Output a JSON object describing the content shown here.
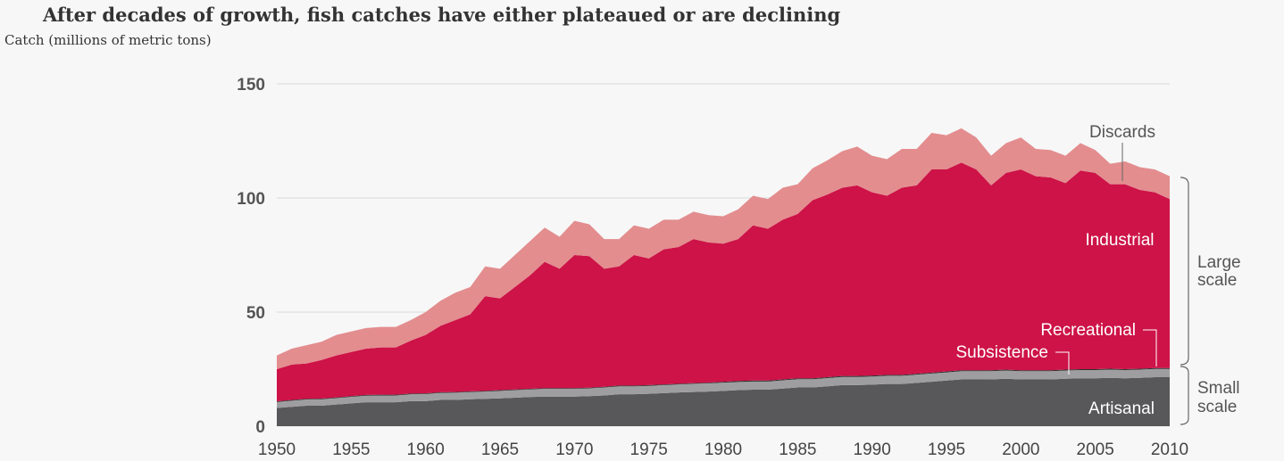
{
  "chart_data": {
    "type": "area",
    "stacked": true,
    "title": "After decades of growth, fish catches have either plateaued or are declining",
    "ylabel": "Catch (millions of metric tons)",
    "xlabel": "",
    "xlim": [
      1950,
      2010
    ],
    "ylim": [
      0,
      150
    ],
    "yticks": [
      0,
      50,
      100,
      150
    ],
    "xticks": [
      1950,
      1955,
      1960,
      1965,
      1970,
      1975,
      1980,
      1985,
      1990,
      1995,
      2000,
      2005,
      2010
    ],
    "grid": "horizontal",
    "x": [
      1950,
      1951,
      1952,
      1953,
      1954,
      1955,
      1956,
      1957,
      1958,
      1959,
      1960,
      1961,
      1962,
      1963,
      1964,
      1965,
      1966,
      1967,
      1968,
      1969,
      1970,
      1971,
      1972,
      1973,
      1974,
      1975,
      1976,
      1977,
      1978,
      1979,
      1980,
      1981,
      1982,
      1983,
      1984,
      1985,
      1986,
      1987,
      1988,
      1989,
      1990,
      1991,
      1992,
      1993,
      1994,
      1995,
      1996,
      1997,
      1998,
      1999,
      2000,
      2001,
      2002,
      2003,
      2004,
      2005,
      2006,
      2007,
      2008,
      2009,
      2010
    ],
    "series": [
      {
        "name": "Artisanal",
        "color": "#58585a",
        "values": [
          8,
          8.5,
          9,
          9,
          9.5,
          10,
          10.5,
          10.5,
          10.5,
          11,
          11,
          11.5,
          11.5,
          11.8,
          12,
          12.2,
          12.5,
          12.8,
          13,
          13,
          13,
          13.2,
          13.5,
          14,
          14,
          14.2,
          14.5,
          14.8,
          15,
          15.2,
          15.5,
          15.8,
          16,
          16,
          16.5,
          17,
          17,
          17.5,
          18,
          18,
          18.2,
          18.5,
          18.5,
          19,
          19.5,
          20,
          20.5,
          20.5,
          20.5,
          20.8,
          20.5,
          20.5,
          20.5,
          20.8,
          21,
          21,
          21.2,
          21,
          21.2,
          21.5,
          21.5
        ]
      },
      {
        "name": "Subsistence",
        "color": "#9e9ea0",
        "values": [
          2.6,
          2.7,
          2.7,
          2.8,
          2.8,
          2.9,
          2.9,
          3,
          3,
          3,
          3.1,
          3.1,
          3.2,
          3.2,
          3.2,
          3.3,
          3.3,
          3.3,
          3.4,
          3.4,
          3.4,
          3.4,
          3.5,
          3.5,
          3.5,
          3.5,
          3.5,
          3.5,
          3.6,
          3.6,
          3.6,
          3.6,
          3.6,
          3.6,
          3.6,
          3.6,
          3.6,
          3.6,
          3.6,
          3.6,
          3.6,
          3.6,
          3.6,
          3.6,
          3.6,
          3.6,
          3.6,
          3.6,
          3.6,
          3.6,
          3.6,
          3.6,
          3.6,
          3.6,
          3.6,
          3.6,
          3.6,
          3.6,
          3.6,
          3.6,
          3.6
        ]
      },
      {
        "name": "Recreational",
        "color": "#2e2e30",
        "values": [
          0.3,
          0.3,
          0.3,
          0.3,
          0.3,
          0.3,
          0.3,
          0.3,
          0.3,
          0.3,
          0.3,
          0.3,
          0.3,
          0.3,
          0.3,
          0.3,
          0.3,
          0.3,
          0.3,
          0.3,
          0.3,
          0.3,
          0.3,
          0.3,
          0.3,
          0.3,
          0.3,
          0.3,
          0.3,
          0.3,
          0.4,
          0.4,
          0.4,
          0.4,
          0.4,
          0.4,
          0.4,
          0.4,
          0.4,
          0.4,
          0.4,
          0.4,
          0.4,
          0.4,
          0.4,
          0.4,
          0.4,
          0.4,
          0.4,
          0.4,
          0.4,
          0.4,
          0.4,
          0.4,
          0.4,
          0.4,
          0.4,
          0.4,
          0.4,
          0.4,
          0.4
        ]
      },
      {
        "name": "Industrial",
        "color": "#cd1347",
        "values": [
          14.1,
          15.5,
          15.5,
          16.9,
          18.4,
          19.3,
          20.3,
          20.7,
          20.7,
          23.2,
          25.6,
          29.1,
          31.5,
          33.7,
          41.5,
          40.2,
          44.9,
          49.6,
          55.3,
          52.3,
          58.3,
          57.6,
          51.7,
          52.2,
          57.2,
          55.5,
          59.2,
          59.9,
          63.1,
          61.4,
          60.5,
          62.2,
          68,
          66.5,
          70,
          72,
          78,
          80,
          82.5,
          83.5,
          80.3,
          78.5,
          82,
          82.5,
          89,
          88.5,
          91,
          88,
          81,
          86.2,
          88,
          85,
          84.5,
          81.7,
          87,
          86,
          80.8,
          81,
          78.3,
          77,
          74
        ]
      },
      {
        "name": "Discards",
        "color": "#e38d8f",
        "values": [
          6,
          7,
          8,
          8,
          9,
          9,
          9,
          9,
          9,
          9,
          10,
          11,
          12,
          12,
          13,
          13,
          14,
          15,
          15,
          14,
          15,
          14,
          13,
          12,
          13,
          13,
          13,
          12,
          12,
          12,
          12,
          13,
          13,
          13,
          14,
          13,
          14,
          15,
          16,
          17,
          16,
          16,
          17,
          16,
          16,
          15,
          15,
          14,
          13,
          13,
          14,
          12,
          12,
          12,
          12,
          10,
          9,
          10,
          10,
          10,
          10
        ]
      }
    ],
    "annotations": {
      "discards": "Discards",
      "industrial": "Industrial",
      "recreational": "Recreational",
      "subsistence": "Subsistence",
      "artisanal": "Artisanal",
      "large_scale_line1": "Large",
      "large_scale_line2": "scale",
      "small_scale_line1": "Small",
      "small_scale_line2": "scale"
    }
  }
}
